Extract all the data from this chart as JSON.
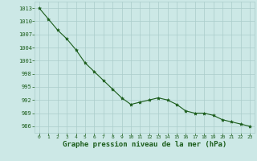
{
  "x": [
    0,
    1,
    2,
    3,
    4,
    5,
    6,
    7,
    8,
    9,
    10,
    11,
    12,
    13,
    14,
    15,
    16,
    17,
    18,
    19,
    20,
    21,
    22,
    23
  ],
  "y": [
    1013,
    1010.5,
    1008,
    1006,
    1003.5,
    1000.5,
    998.5,
    996.5,
    994.5,
    992.5,
    991,
    991.5,
    992,
    992.5,
    992,
    991,
    989.5,
    989,
    989,
    988.5,
    987.5,
    987,
    986.5,
    986
  ],
  "line_color": "#1a5c1a",
  "marker": "*",
  "marker_size": 3,
  "bg_color": "#cce8e6",
  "grid_color": "#aaccca",
  "xlabel": "Graphe pression niveau de la mer (hPa)",
  "xlabel_fontsize": 6.5,
  "xlabel_color": "#1a5c1a",
  "yticks": [
    986,
    989,
    992,
    995,
    998,
    1001,
    1004,
    1007,
    1010,
    1013
  ],
  "xticks": [
    0,
    1,
    2,
    3,
    4,
    5,
    6,
    7,
    8,
    9,
    10,
    11,
    12,
    13,
    14,
    15,
    16,
    17,
    18,
    19,
    20,
    21,
    22,
    23
  ],
  "ytick_fontsize": 5.0,
  "xtick_fontsize": 4.5,
  "tick_color": "#1a5c1a",
  "ylim": [
    984.5,
    1014.5
  ],
  "xlim": [
    -0.5,
    23.5
  ]
}
